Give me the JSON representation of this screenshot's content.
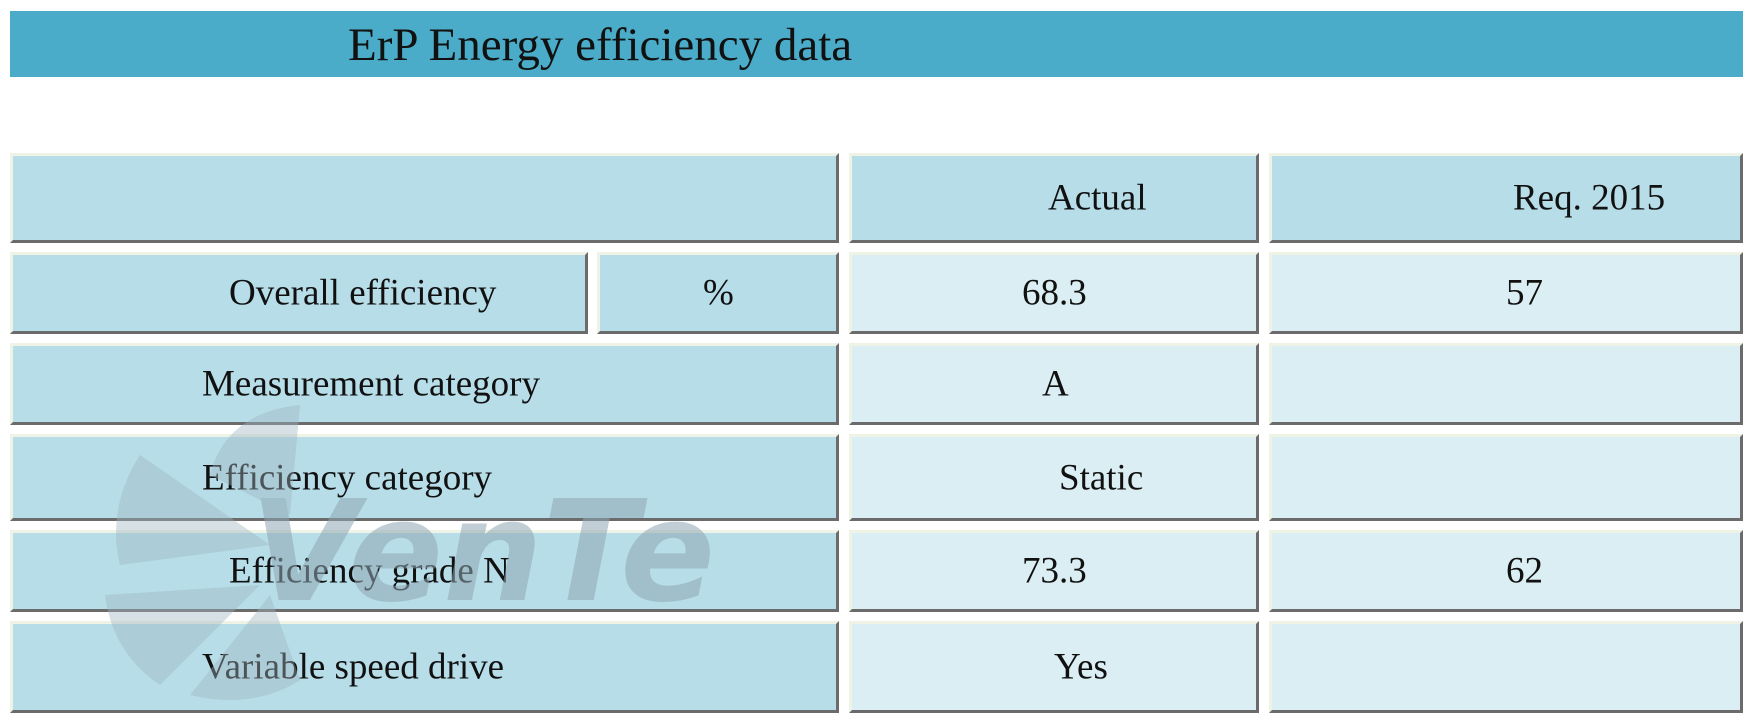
{
  "title": "ErP Energy efficiency data",
  "header": {
    "actual": "Actual",
    "required": "Req. 2015"
  },
  "rows": [
    {
      "label": "Overall efficiency",
      "unit": "%",
      "actual": "68.3",
      "required": "57"
    },
    {
      "label": "Measurement category",
      "actual": "A",
      "required": ""
    },
    {
      "label": "Efficiency category",
      "actual": "Static",
      "required": ""
    },
    {
      "label": "Efficiency grade N",
      "actual": "73.3",
      "required": "62"
    },
    {
      "label": "Variable speed drive",
      "actual": "Yes",
      "required": ""
    }
  ],
  "watermark": {
    "icon": "fan-logo-icon",
    "text": "VenTel"
  },
  "colors": {
    "title_bar": "#4aacc8",
    "label_cell": "#b6dde8",
    "value_cell": "#dbeef4"
  }
}
